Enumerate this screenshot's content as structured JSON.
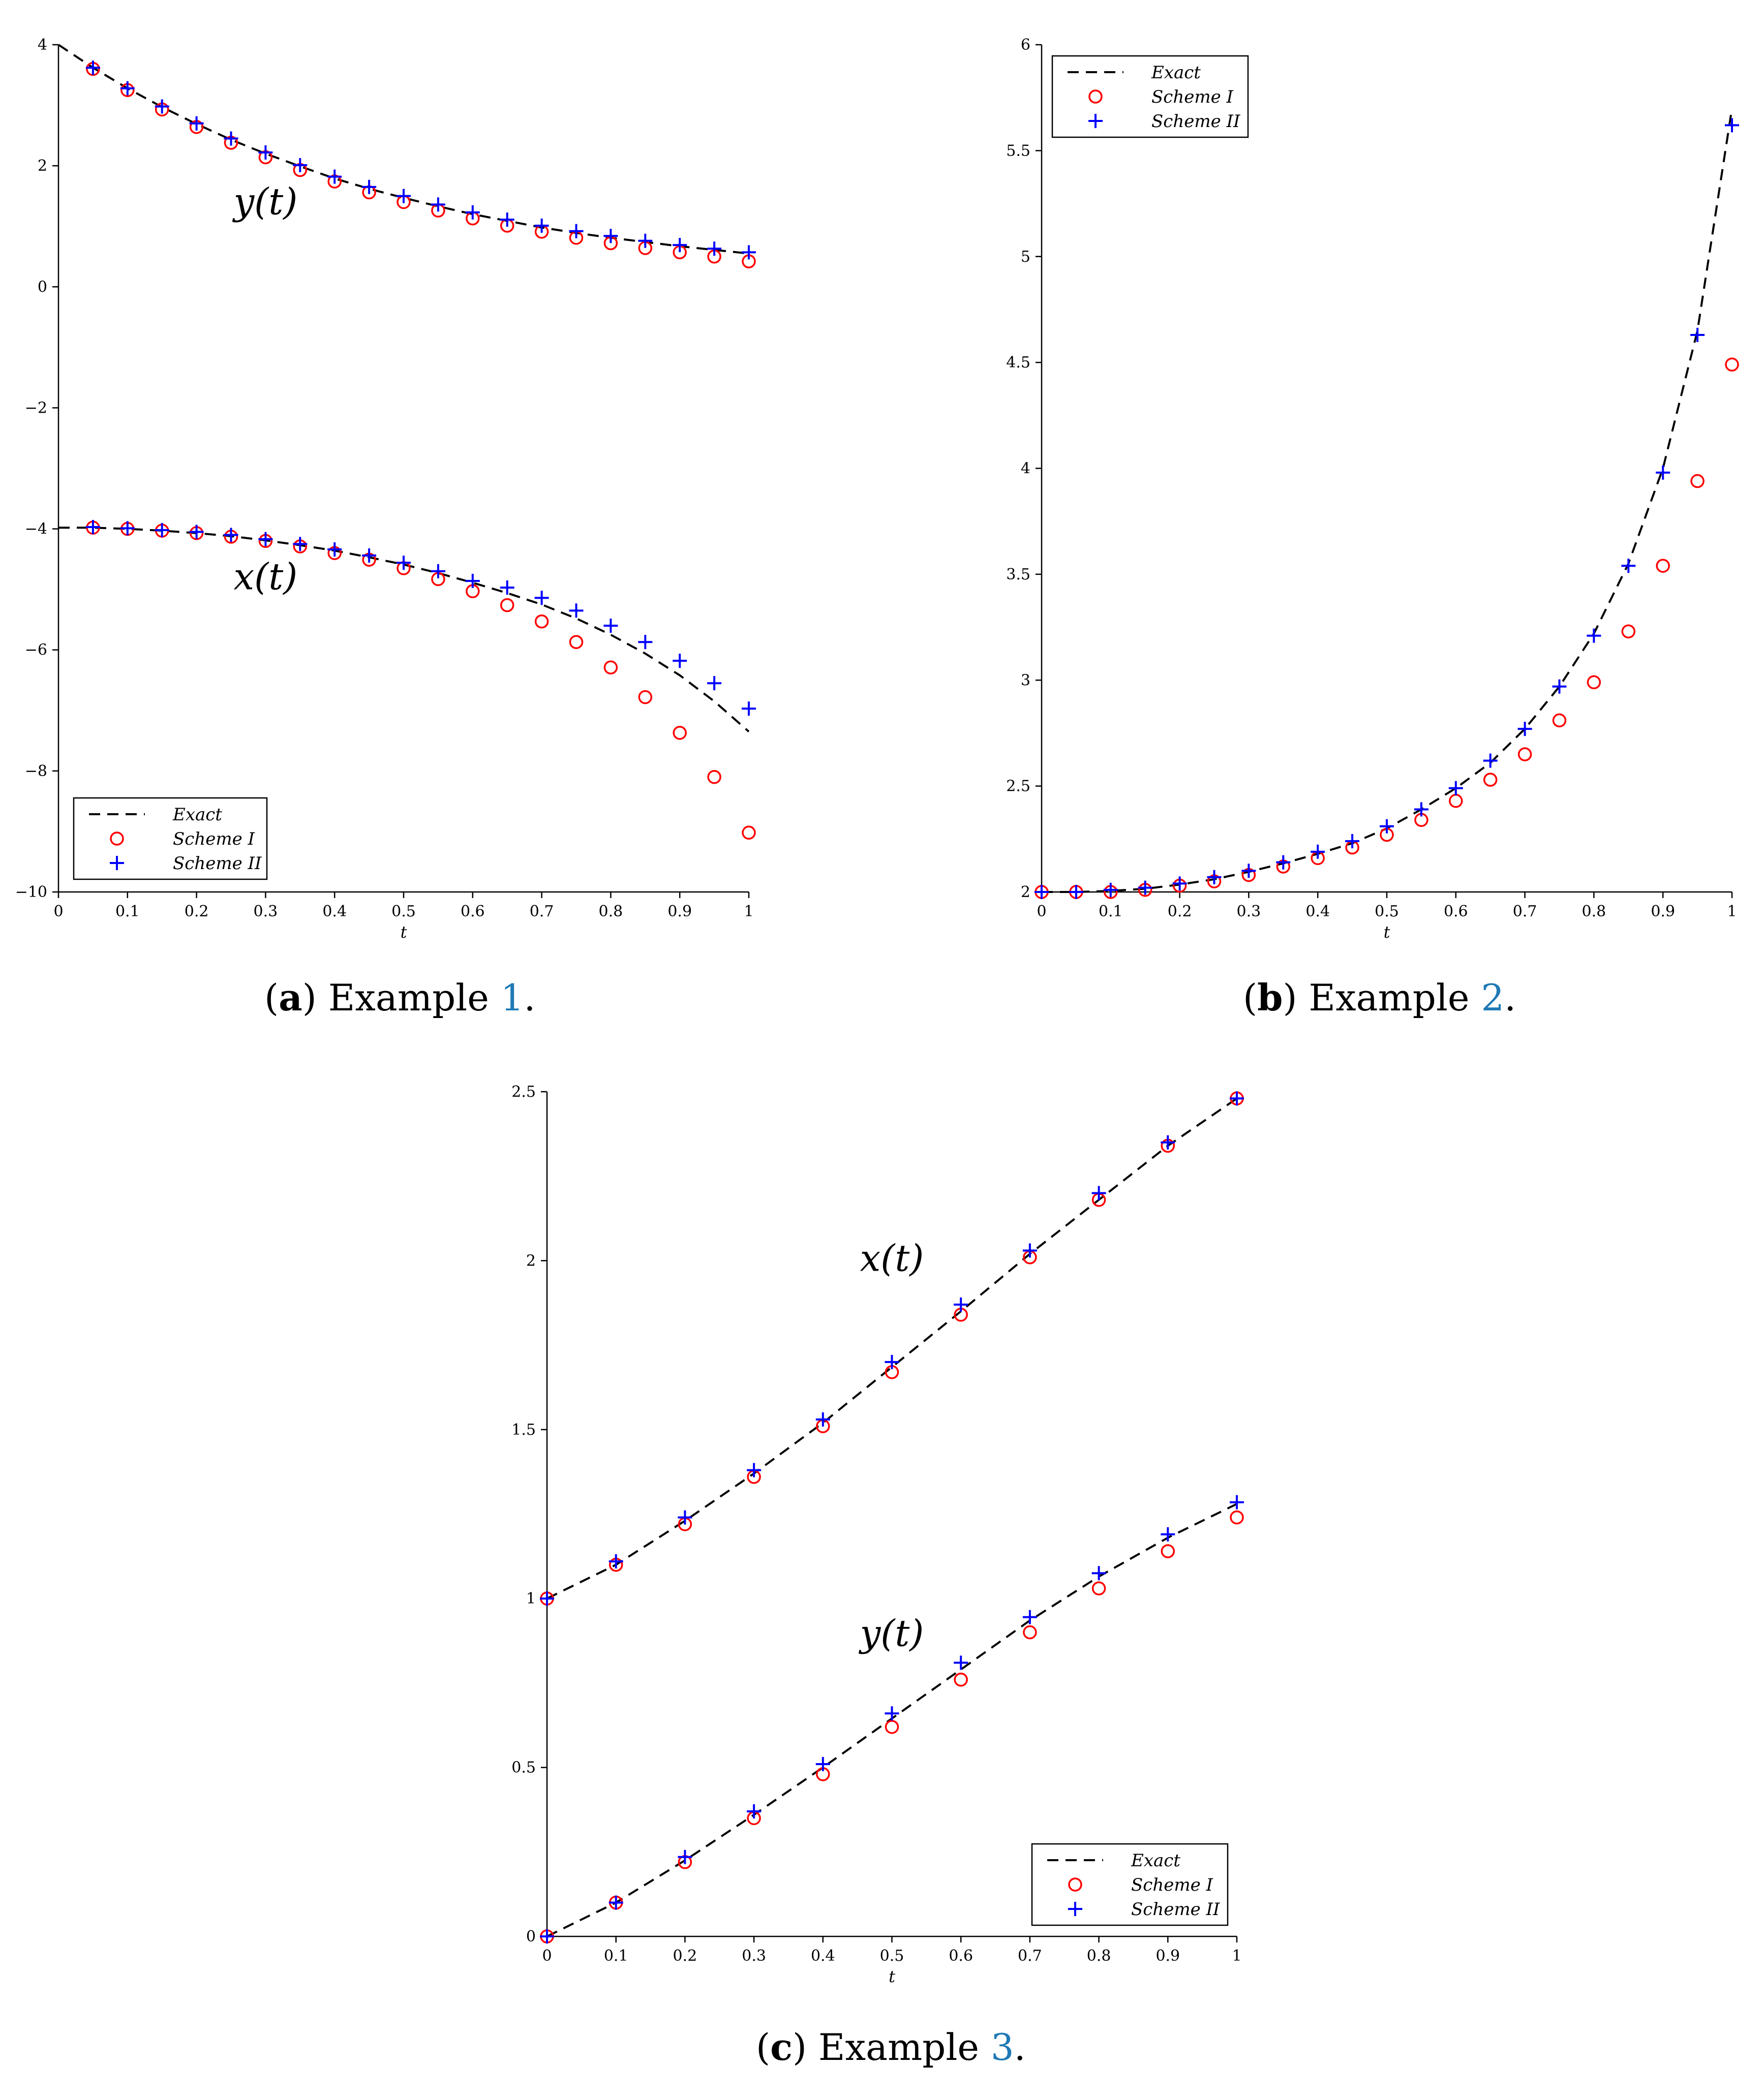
{
  "captions": [
    {
      "paren_open": "(",
      "letter": "a",
      "paren_close": ")",
      "text": " Example ",
      "ref": "1",
      "end": "."
    },
    {
      "paren_open": "(",
      "letter": "b",
      "paren_close": ")",
      "text": " Example ",
      "ref": "2",
      "end": "."
    },
    {
      "paren_open": "(",
      "letter": "c",
      "paren_close": ")",
      "text": " Example ",
      "ref": "3",
      "end": "."
    }
  ],
  "chart_data": [
    {
      "type": "line",
      "title": "",
      "xlabel": "t",
      "ylabel": "",
      "xlim": [
        0,
        1
      ],
      "ylim": [
        -10,
        4
      ],
      "xticks": [
        0,
        0.1,
        0.2,
        0.3,
        0.4,
        0.5,
        0.6,
        0.7,
        0.8,
        0.9,
        1
      ],
      "xtick_labels": [
        "0",
        "0.1",
        "0.2",
        "0.3",
        "0.4",
        "0.5",
        "0.6",
        "0.7",
        "0.8",
        "0.9",
        "1"
      ],
      "yticks": [
        -10,
        -8,
        -6,
        -4,
        -2,
        0,
        2,
        4
      ],
      "ytick_labels": [
        "−10",
        "−8",
        "−6",
        "−4",
        "−2",
        "0",
        "2",
        "4"
      ],
      "legend": {
        "position": "bottom-left",
        "entries": [
          "Exact",
          "Scheme I",
          "Scheme II"
        ]
      },
      "curve_labels": [
        {
          "text": "y(t)",
          "x": 0.3,
          "y": 1.2
        },
        {
          "text": "x(t)",
          "x": 0.3,
          "y": -5.0
        }
      ],
      "colors": {
        "exact": "#000000",
        "scheme1": "#ff0000",
        "scheme2": "#0000ff"
      },
      "series": [
        {
          "name": "Exact",
          "style": "dashed-line",
          "x": [
            0,
            0.05,
            0.1,
            0.15,
            0.2,
            0.25,
            0.3,
            0.35,
            0.4,
            0.45,
            0.5,
            0.55,
            0.6,
            0.65,
            0.7,
            0.75,
            0.8,
            0.85,
            0.9,
            0.95,
            1
          ],
          "y": [
            4.0,
            3.62,
            3.28,
            2.97,
            2.69,
            2.43,
            2.2,
            1.99,
            1.79,
            1.62,
            1.47,
            1.33,
            1.2,
            1.09,
            0.98,
            0.89,
            0.81,
            0.74,
            0.67,
            0.61,
            0.55
          ]
        },
        {
          "name": "Exact",
          "style": "dashed-line",
          "x": [
            0,
            0.05,
            0.1,
            0.15,
            0.2,
            0.25,
            0.3,
            0.35,
            0.4,
            0.45,
            0.5,
            0.55,
            0.6,
            0.65,
            0.7,
            0.75,
            0.8,
            0.85,
            0.9,
            0.95,
            1
          ],
          "y": [
            -3.98,
            -3.98,
            -4.0,
            -4.03,
            -4.07,
            -4.12,
            -4.19,
            -4.27,
            -4.36,
            -4.47,
            -4.59,
            -4.73,
            -4.89,
            -5.06,
            -5.25,
            -5.48,
            -5.75,
            -6.06,
            -6.42,
            -6.85,
            -7.35
          ]
        },
        {
          "name": "Scheme I",
          "style": "circle",
          "x": [
            0.05,
            0.1,
            0.15,
            0.2,
            0.25,
            0.3,
            0.35,
            0.4,
            0.45,
            0.5,
            0.55,
            0.6,
            0.65,
            0.7,
            0.75,
            0.8,
            0.85,
            0.9,
            0.95,
            1
          ],
          "y": [
            3.6,
            3.25,
            2.93,
            2.64,
            2.38,
            2.14,
            1.93,
            1.74,
            1.56,
            1.4,
            1.26,
            1.13,
            1.01,
            0.91,
            0.81,
            0.72,
            0.64,
            0.57,
            0.5,
            0.42
          ]
        },
        {
          "name": "Scheme I",
          "style": "circle",
          "x": [
            0.05,
            0.1,
            0.15,
            0.2,
            0.25,
            0.3,
            0.35,
            0.4,
            0.45,
            0.5,
            0.55,
            0.6,
            0.65,
            0.7,
            0.75,
            0.8,
            0.85,
            0.9,
            0.95,
            1
          ],
          "y": [
            -3.98,
            -4.0,
            -4.03,
            -4.07,
            -4.13,
            -4.2,
            -4.29,
            -4.4,
            -4.51,
            -4.65,
            -4.83,
            -5.03,
            -5.26,
            -5.53,
            -5.87,
            -6.29,
            -6.78,
            -7.37,
            -8.1,
            -9.02
          ]
        },
        {
          "name": "Scheme II",
          "style": "plus",
          "x": [
            0.05,
            0.1,
            0.15,
            0.2,
            0.25,
            0.3,
            0.35,
            0.4,
            0.45,
            0.5,
            0.55,
            0.6,
            0.65,
            0.7,
            0.75,
            0.8,
            0.85,
            0.9,
            0.95,
            1
          ],
          "y": [
            3.62,
            3.28,
            2.98,
            2.7,
            2.45,
            2.22,
            2.01,
            1.82,
            1.65,
            1.5,
            1.36,
            1.23,
            1.11,
            1.01,
            0.92,
            0.84,
            0.76,
            0.69,
            0.63,
            0.57
          ]
        },
        {
          "name": "Scheme II",
          "style": "plus",
          "x": [
            0.05,
            0.1,
            0.15,
            0.2,
            0.25,
            0.3,
            0.35,
            0.4,
            0.45,
            0.5,
            0.55,
            0.6,
            0.65,
            0.7,
            0.75,
            0.8,
            0.85,
            0.9,
            0.95,
            1
          ],
          "y": [
            -3.97,
            -3.99,
            -4.02,
            -4.05,
            -4.1,
            -4.17,
            -4.25,
            -4.34,
            -4.44,
            -4.56,
            -4.7,
            -4.86,
            -4.97,
            -5.14,
            -5.35,
            -5.6,
            -5.87,
            -6.18,
            -6.55,
            -6.97
          ]
        }
      ]
    },
    {
      "type": "line",
      "title": "",
      "xlabel": "t",
      "ylabel": "",
      "xlim": [
        0,
        1
      ],
      "ylim": [
        2,
        6
      ],
      "xticks": [
        0,
        0.1,
        0.2,
        0.3,
        0.4,
        0.5,
        0.6,
        0.7,
        0.8,
        0.9,
        1
      ],
      "xtick_labels": [
        "0",
        "0.1",
        "0.2",
        "0.3",
        "0.4",
        "0.5",
        "0.6",
        "0.7",
        "0.8",
        "0.9",
        "1"
      ],
      "yticks": [
        2,
        2.5,
        3,
        3.5,
        4,
        4.5,
        5,
        5.5,
        6
      ],
      "ytick_labels": [
        "2",
        "2.5",
        "3",
        "3.5",
        "4",
        "4.5",
        "5",
        "5.5",
        "6"
      ],
      "legend": {
        "position": "top-left",
        "entries": [
          "Exact",
          "Scheme I",
          "Scheme II"
        ]
      },
      "curve_labels": [],
      "colors": {
        "exact": "#000000",
        "scheme1": "#ff0000",
        "scheme2": "#0000ff"
      },
      "series": [
        {
          "name": "Exact",
          "style": "dashed-line",
          "x": [
            0,
            0.05,
            0.1,
            0.15,
            0.2,
            0.25,
            0.3,
            0.35,
            0.4,
            0.45,
            0.5,
            0.55,
            0.6,
            0.65,
            0.7,
            0.75,
            0.8,
            0.85,
            0.9,
            0.95,
            1
          ],
          "y": [
            2.0,
            2.0,
            2.005,
            2.015,
            2.035,
            2.06,
            2.095,
            2.135,
            2.18,
            2.23,
            2.3,
            2.39,
            2.49,
            2.61,
            2.77,
            2.97,
            3.22,
            3.55,
            4.0,
            4.65,
            5.7
          ]
        },
        {
          "name": "Scheme I",
          "style": "circle",
          "x": [
            0,
            0.05,
            0.1,
            0.15,
            0.2,
            0.25,
            0.3,
            0.35,
            0.4,
            0.45,
            0.5,
            0.55,
            0.6,
            0.65,
            0.7,
            0.75,
            0.8,
            0.85,
            0.9,
            0.95,
            1
          ],
          "y": [
            2.0,
            2.0,
            2.0,
            2.01,
            2.03,
            2.05,
            2.08,
            2.12,
            2.16,
            2.21,
            2.27,
            2.34,
            2.43,
            2.53,
            2.65,
            2.81,
            2.99,
            3.23,
            3.54,
            3.94,
            4.49
          ]
        },
        {
          "name": "Scheme II",
          "style": "plus",
          "x": [
            0,
            0.05,
            0.1,
            0.15,
            0.2,
            0.25,
            0.3,
            0.35,
            0.4,
            0.45,
            0.5,
            0.55,
            0.6,
            0.65,
            0.7,
            0.75,
            0.8,
            0.85,
            0.9,
            0.95,
            1
          ],
          "y": [
            2.0,
            2.0,
            2.01,
            2.02,
            2.04,
            2.07,
            2.1,
            2.14,
            2.19,
            2.24,
            2.31,
            2.39,
            2.49,
            2.62,
            2.77,
            2.97,
            3.21,
            3.54,
            3.98,
            4.63,
            5.62
          ]
        }
      ]
    },
    {
      "type": "line",
      "title": "",
      "xlabel": "t",
      "ylabel": "",
      "xlim": [
        0,
        1
      ],
      "ylim": [
        0,
        2.5
      ],
      "xticks": [
        0,
        0.1,
        0.2,
        0.3,
        0.4,
        0.5,
        0.6,
        0.7,
        0.8,
        0.9,
        1
      ],
      "xtick_labels": [
        "0",
        "0.1",
        "0.2",
        "0.3",
        "0.4",
        "0.5",
        "0.6",
        "0.7",
        "0.8",
        "0.9",
        "1"
      ],
      "yticks": [
        0,
        0.5,
        1,
        1.5,
        2,
        2.5
      ],
      "ytick_labels": [
        "0",
        "0.5",
        "1",
        "1.5",
        "2",
        "2.5"
      ],
      "legend": {
        "position": "bottom-right",
        "entries": [
          "Exact",
          "Scheme I",
          "Scheme II"
        ]
      },
      "curve_labels": [
        {
          "text": "x(t)",
          "x": 0.5,
          "y": 1.97
        },
        {
          "text": "y(t)",
          "x": 0.5,
          "y": 0.86
        }
      ],
      "colors": {
        "exact": "#000000",
        "scheme1": "#ff0000",
        "scheme2": "#0000ff"
      },
      "series": [
        {
          "name": "Exact",
          "style": "dashed-line",
          "x": [
            0,
            0.1,
            0.2,
            0.3,
            0.4,
            0.5,
            0.6,
            0.7,
            0.8,
            0.9,
            1
          ],
          "y": [
            1.0,
            1.1,
            1.23,
            1.37,
            1.52,
            1.685,
            1.85,
            2.02,
            2.18,
            2.34,
            2.48
          ]
        },
        {
          "name": "Exact",
          "style": "dashed-line",
          "x": [
            0,
            0.1,
            0.2,
            0.3,
            0.4,
            0.5,
            0.6,
            0.7,
            0.8,
            0.9,
            1
          ],
          "y": [
            0.0,
            0.1,
            0.225,
            0.36,
            0.5,
            0.645,
            0.79,
            0.935,
            1.065,
            1.18,
            1.28
          ]
        },
        {
          "name": "Scheme I",
          "style": "circle",
          "x": [
            0,
            0.1,
            0.2,
            0.3,
            0.4,
            0.5,
            0.6,
            0.7,
            0.8,
            0.9,
            1
          ],
          "y": [
            1.0,
            1.1,
            1.22,
            1.36,
            1.51,
            1.67,
            1.84,
            2.01,
            2.18,
            2.34,
            2.48
          ]
        },
        {
          "name": "Scheme I",
          "style": "circle",
          "x": [
            0,
            0.1,
            0.2,
            0.3,
            0.4,
            0.5,
            0.6,
            0.7,
            0.8,
            0.9,
            1
          ],
          "y": [
            0.0,
            0.1,
            0.22,
            0.35,
            0.48,
            0.62,
            0.76,
            0.9,
            1.03,
            1.14,
            1.24
          ]
        },
        {
          "name": "Scheme II",
          "style": "plus",
          "x": [
            0,
            0.1,
            0.2,
            0.3,
            0.4,
            0.5,
            0.6,
            0.7,
            0.8,
            0.9,
            1
          ],
          "y": [
            1.0,
            1.11,
            1.24,
            1.38,
            1.53,
            1.7,
            1.87,
            2.03,
            2.2,
            2.35,
            2.48
          ]
        },
        {
          "name": "Scheme II",
          "style": "plus",
          "x": [
            0,
            0.1,
            0.2,
            0.3,
            0.4,
            0.5,
            0.6,
            0.7,
            0.8,
            0.9,
            1
          ],
          "y": [
            0.0,
            0.1,
            0.235,
            0.37,
            0.51,
            0.66,
            0.81,
            0.945,
            1.075,
            1.19,
            1.285
          ]
        }
      ]
    }
  ]
}
